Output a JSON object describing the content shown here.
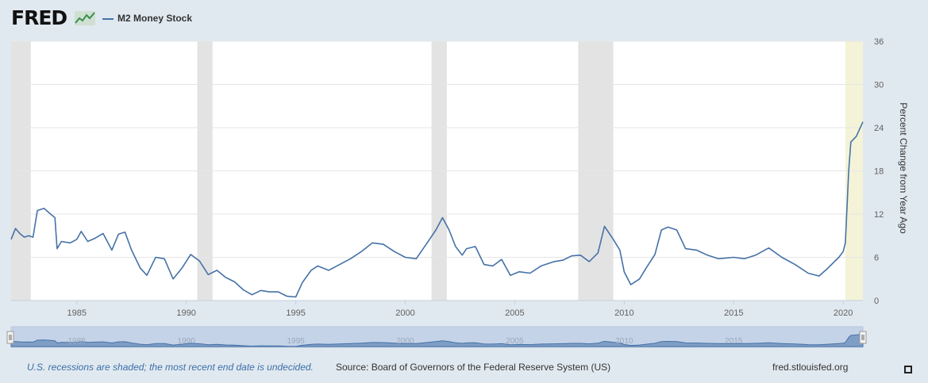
{
  "header": {
    "logo_text": "FRED",
    "logo_icon": "line-graph-icon"
  },
  "chart_data": {
    "type": "line",
    "title": "",
    "series": [
      {
        "name": "M2 Money Stock",
        "color": "#4572a7"
      }
    ],
    "ylabel": "Percent Change from Year Ago",
    "xlabel": "",
    "xlim": [
      1982.0,
      2020.9
    ],
    "ylim": [
      0,
      36
    ],
    "x_ticks": [
      1985,
      1990,
      1995,
      2000,
      2005,
      2010,
      2015,
      2020
    ],
    "y_ticks": [
      0,
      6,
      12,
      18,
      24,
      30,
      36
    ],
    "points": [
      [
        1982.0,
        8.5
      ],
      [
        1982.2,
        10.0
      ],
      [
        1982.4,
        9.3
      ],
      [
        1982.6,
        8.8
      ],
      [
        1982.8,
        9.0
      ],
      [
        1983.0,
        8.8
      ],
      [
        1983.2,
        12.5
      ],
      [
        1983.5,
        12.8
      ],
      [
        1983.8,
        12.0
      ],
      [
        1984.0,
        11.5
      ],
      [
        1984.1,
        7.2
      ],
      [
        1984.3,
        8.2
      ],
      [
        1984.7,
        8.0
      ],
      [
        1985.0,
        8.5
      ],
      [
        1985.2,
        9.6
      ],
      [
        1985.5,
        8.2
      ],
      [
        1985.8,
        8.6
      ],
      [
        1986.2,
        9.3
      ],
      [
        1986.6,
        7.0
      ],
      [
        1986.9,
        9.2
      ],
      [
        1987.2,
        9.5
      ],
      [
        1987.5,
        7.0
      ],
      [
        1987.9,
        4.5
      ],
      [
        1988.2,
        3.5
      ],
      [
        1988.6,
        6.0
      ],
      [
        1989.0,
        5.8
      ],
      [
        1989.4,
        3.0
      ],
      [
        1989.8,
        4.5
      ],
      [
        1990.2,
        6.4
      ],
      [
        1990.6,
        5.5
      ],
      [
        1991.0,
        3.6
      ],
      [
        1991.4,
        4.2
      ],
      [
        1991.8,
        3.2
      ],
      [
        1992.2,
        2.6
      ],
      [
        1992.6,
        1.5
      ],
      [
        1993.0,
        0.8
      ],
      [
        1993.4,
        1.4
      ],
      [
        1993.8,
        1.2
      ],
      [
        1994.2,
        1.2
      ],
      [
        1994.6,
        0.6
      ],
      [
        1995.0,
        0.5
      ],
      [
        1995.3,
        2.5
      ],
      [
        1995.7,
        4.2
      ],
      [
        1996.0,
        4.8
      ],
      [
        1996.5,
        4.2
      ],
      [
        1997.0,
        5.0
      ],
      [
        1997.5,
        5.8
      ],
      [
        1998.0,
        6.8
      ],
      [
        1998.5,
        8.0
      ],
      [
        1999.0,
        7.8
      ],
      [
        1999.5,
        6.8
      ],
      [
        2000.0,
        6.0
      ],
      [
        2000.5,
        5.8
      ],
      [
        2001.0,
        8.0
      ],
      [
        2001.4,
        9.8
      ],
      [
        2001.7,
        11.5
      ],
      [
        2002.0,
        9.8
      ],
      [
        2002.3,
        7.5
      ],
      [
        2002.6,
        6.3
      ],
      [
        2002.8,
        7.2
      ],
      [
        2003.2,
        7.5
      ],
      [
        2003.6,
        5.0
      ],
      [
        2004.0,
        4.8
      ],
      [
        2004.4,
        5.7
      ],
      [
        2004.8,
        3.5
      ],
      [
        2005.2,
        4.0
      ],
      [
        2005.7,
        3.8
      ],
      [
        2006.2,
        4.8
      ],
      [
        2006.8,
        5.4
      ],
      [
        2007.2,
        5.6
      ],
      [
        2007.6,
        6.2
      ],
      [
        2008.0,
        6.3
      ],
      [
        2008.4,
        5.4
      ],
      [
        2008.8,
        6.6
      ],
      [
        2009.1,
        10.3
      ],
      [
        2009.5,
        8.5
      ],
      [
        2009.8,
        7.0
      ],
      [
        2010.0,
        4.0
      ],
      [
        2010.3,
        2.2
      ],
      [
        2010.7,
        3.0
      ],
      [
        2011.0,
        4.5
      ],
      [
        2011.4,
        6.4
      ],
      [
        2011.7,
        9.8
      ],
      [
        2012.0,
        10.2
      ],
      [
        2012.4,
        9.8
      ],
      [
        2012.8,
        7.2
      ],
      [
        2013.3,
        7.0
      ],
      [
        2013.8,
        6.3
      ],
      [
        2014.3,
        5.8
      ],
      [
        2015.0,
        6.0
      ],
      [
        2015.5,
        5.8
      ],
      [
        2016.0,
        6.3
      ],
      [
        2016.6,
        7.3
      ],
      [
        2017.2,
        6.0
      ],
      [
        2017.8,
        5.0
      ],
      [
        2018.4,
        3.8
      ],
      [
        2018.9,
        3.4
      ],
      [
        2019.3,
        4.5
      ],
      [
        2019.8,
        6.0
      ],
      [
        2020.0,
        6.8
      ],
      [
        2020.1,
        8.0
      ],
      [
        2020.25,
        18.0
      ],
      [
        2020.35,
        22.0
      ],
      [
        2020.6,
        22.8
      ],
      [
        2020.9,
        24.8
      ]
    ],
    "recessions": [
      [
        1981.5,
        1982.9
      ],
      [
        1990.5,
        1991.2
      ],
      [
        2001.2,
        2001.9
      ],
      [
        2007.9,
        2009.5
      ]
    ],
    "current_period_shade": [
      2020.1,
      2020.9
    ],
    "navigator_tick_labels": [
      "1985",
      "1990",
      "1995",
      "2000",
      "2005",
      "2010",
      "2015"
    ]
  },
  "footer": {
    "recession_note": "U.S. recessions are shaded; the most recent end date is undecided.",
    "source": "Source: Board of Governors of the Federal Reserve System (US)",
    "site": "fred.stlouisfed.org"
  }
}
